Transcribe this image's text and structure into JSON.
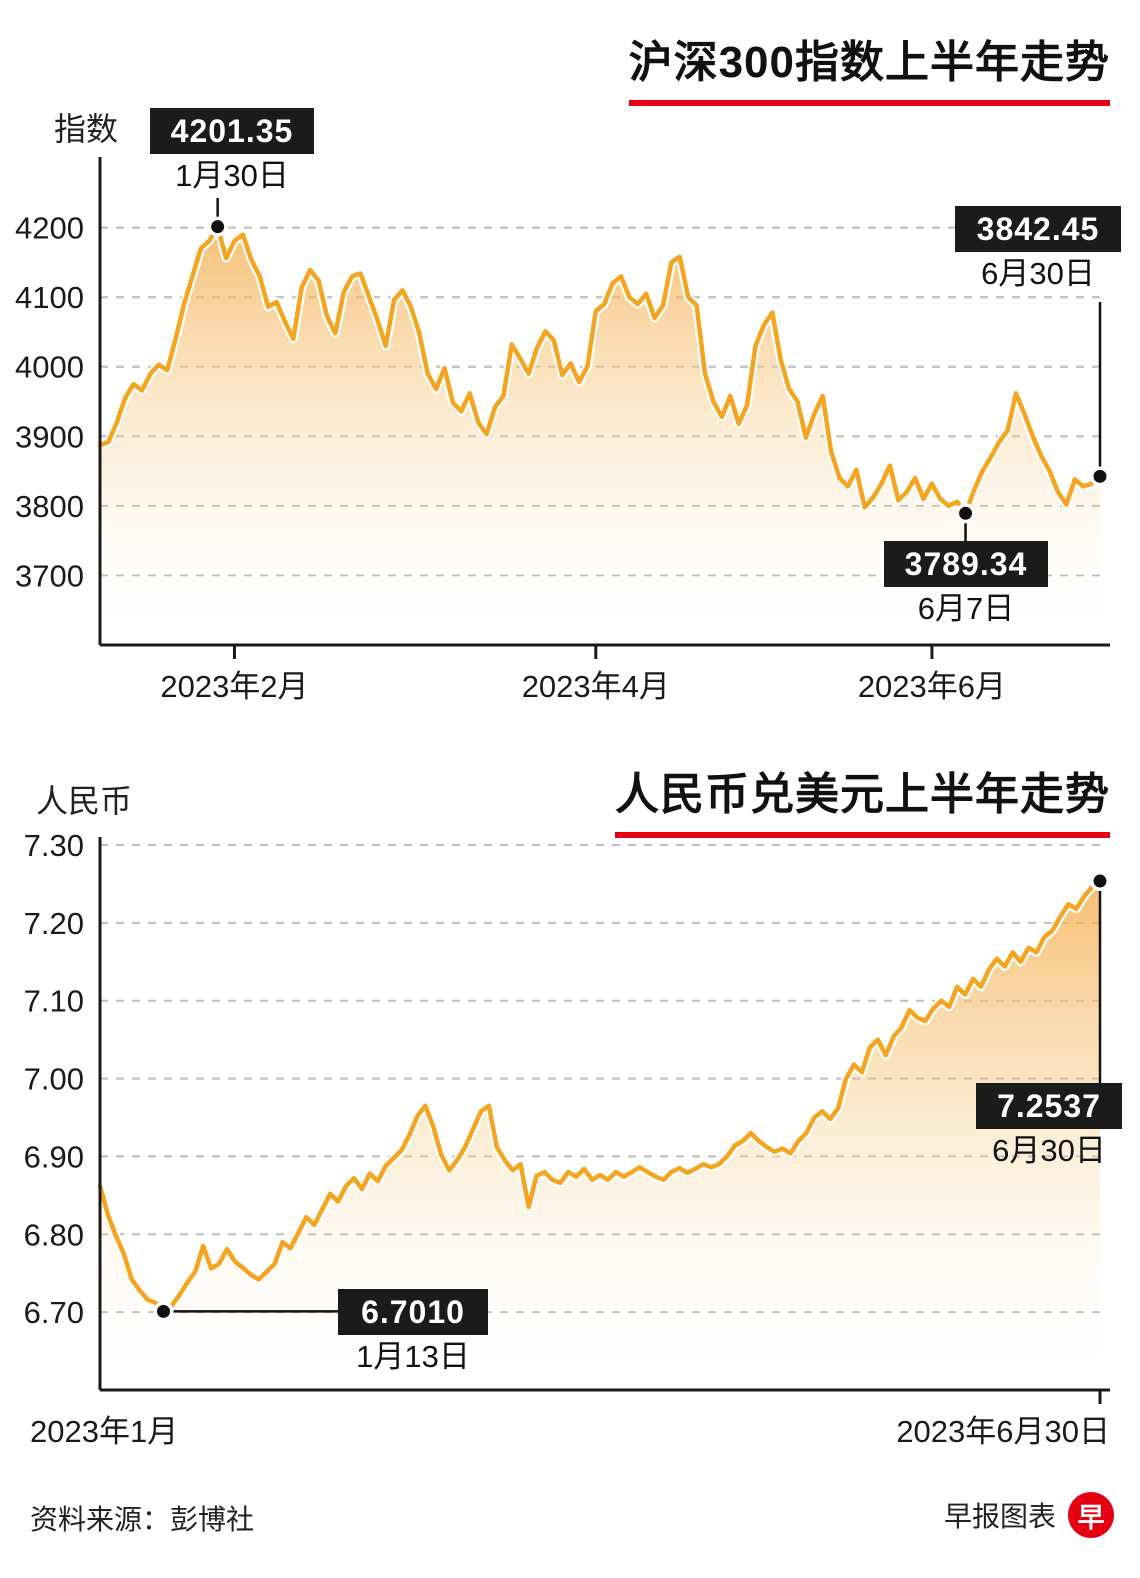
{
  "page": {
    "source_label": "资料来源：彭博社",
    "credit_label": "早报图表",
    "logo_char": "早",
    "colors": {
      "line": "#f5a41f",
      "accent_red": "#e60012",
      "annotation_bg": "#1b1b1b",
      "grid": "#bcbcbc"
    }
  },
  "chart_data": [
    {
      "type": "area",
      "title": "沪深300指数上半年走势",
      "ylabel": "指数",
      "ylim": [
        3600,
        4290
      ],
      "ytick_values": [
        4200,
        4100,
        4000,
        3900,
        3800,
        3700
      ],
      "ytick_labels": [
        "4200",
        "4100",
        "4000",
        "3900",
        "3800",
        "3700"
      ],
      "xtick_labels": [
        "2023年2月",
        "2023年4月",
        "2023年6月"
      ],
      "xtick_indices": [
        16,
        59,
        99
      ],
      "grid": true,
      "legend": "none",
      "values": [
        3887,
        3892,
        3920,
        3955,
        3975,
        3966,
        3990,
        4003,
        3995,
        4040,
        4090,
        4130,
        4170,
        4181,
        4201.35,
        4156,
        4181,
        4190,
        4154,
        4130,
        4086,
        4093,
        4065,
        4040,
        4114,
        4139,
        4124,
        4073,
        4048,
        4107,
        4130,
        4134,
        4101,
        4068,
        4030,
        4096,
        4110,
        4086,
        4048,
        3990,
        3968,
        3998,
        3948,
        3936,
        3962,
        3920,
        3903,
        3942,
        3958,
        4032,
        4012,
        3990,
        4027,
        4051,
        4038,
        3988,
        4005,
        3978,
        4000,
        4080,
        4090,
        4120,
        4130,
        4100,
        4090,
        4105,
        4070,
        4088,
        4150,
        4158,
        4100,
        4088,
        3990,
        3950,
        3928,
        3958,
        3918,
        3945,
        4030,
        4060,
        4078,
        4010,
        3968,
        3950,
        3898,
        3932,
        3958,
        3878,
        3840,
        3828,
        3852,
        3798,
        3812,
        3832,
        3858,
        3808,
        3820,
        3840,
        3810,
        3832,
        3810,
        3800,
        3806,
        3789.34,
        3822,
        3850,
        3870,
        3892,
        3908,
        3962,
        3932,
        3900,
        3872,
        3850,
        3820,
        3802,
        3838,
        3828,
        3832,
        3842.45
      ],
      "annotations": [
        {
          "label": "4201.35",
          "date": "1月30日",
          "index": 14,
          "value": 4201.35
        },
        {
          "label": "3842.45",
          "date": "6月30日",
          "index": 119,
          "value": 3842.45
        },
        {
          "label": "3789.34",
          "date": "6月7日",
          "index": 103,
          "value": 3789.34
        }
      ]
    },
    {
      "type": "area",
      "title": "人民币兑美元上半年走势",
      "ylabel": "人民币",
      "ylim": [
        6.6,
        7.3
      ],
      "ytick_values": [
        7.3,
        7.2,
        7.1,
        7.0,
        6.9,
        6.8,
        6.7
      ],
      "ytick_labels": [
        "7.30",
        "7.20",
        "7.10",
        "7.00",
        "6.90",
        "6.80",
        "6.70"
      ],
      "xtick_labels": [
        "2023年1月",
        "2023年6月30日"
      ],
      "grid": true,
      "legend": "none",
      "values": [
        6.862,
        6.825,
        6.798,
        6.775,
        6.742,
        6.728,
        6.716,
        6.712,
        6.701,
        6.708,
        6.722,
        6.738,
        6.752,
        6.785,
        6.756,
        6.762,
        6.781,
        6.765,
        6.757,
        6.748,
        6.742,
        6.752,
        6.762,
        6.79,
        6.782,
        6.802,
        6.822,
        6.812,
        6.832,
        6.852,
        6.842,
        6.862,
        6.872,
        6.858,
        6.878,
        6.868,
        6.888,
        6.898,
        6.908,
        6.928,
        6.952,
        6.965,
        6.938,
        6.902,
        6.882,
        6.895,
        6.912,
        6.935,
        6.958,
        6.965,
        6.912,
        6.895,
        6.882,
        6.89,
        6.835,
        6.875,
        6.88,
        6.87,
        6.866,
        6.88,
        6.874,
        6.884,
        6.87,
        6.876,
        6.87,
        6.88,
        6.874,
        6.88,
        6.886,
        6.88,
        6.874,
        6.87,
        6.88,
        6.885,
        6.879,
        6.884,
        6.89,
        6.886,
        6.89,
        6.9,
        6.914,
        6.92,
        6.93,
        6.92,
        6.912,
        6.906,
        6.91,
        6.904,
        6.92,
        6.93,
        6.95,
        6.958,
        6.948,
        6.962,
        7.0,
        7.018,
        7.008,
        7.04,
        7.05,
        7.03,
        7.054,
        7.066,
        7.088,
        7.078,
        7.074,
        7.09,
        7.1,
        7.092,
        7.118,
        7.108,
        7.128,
        7.118,
        7.14,
        7.154,
        7.144,
        7.162,
        7.15,
        7.168,
        7.162,
        7.182,
        7.19,
        7.208,
        7.224,
        7.218,
        7.234,
        7.246,
        7.2537
      ],
      "annotations": [
        {
          "label": "6.7010",
          "date": "1月13日",
          "index": 8,
          "value": 6.701
        },
        {
          "label": "7.2537",
          "date": "6月30日",
          "index": 126,
          "value": 7.2537
        }
      ]
    }
  ]
}
